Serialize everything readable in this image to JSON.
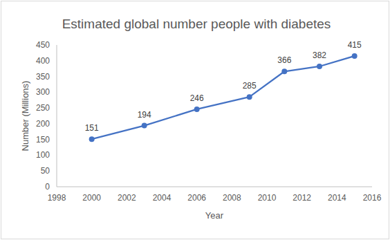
{
  "chart_data": {
    "type": "line",
    "title": "Estimated global number people with diabetes",
    "x_label": "Year",
    "y_label": "Number (Millions)",
    "x": [
      2000,
      2003,
      2006,
      2009,
      2011,
      2013,
      2015
    ],
    "values": [
      151,
      194,
      246,
      285,
      366,
      382,
      415
    ],
    "color": "#4472c4",
    "marker": "circle",
    "line_style": "solid",
    "xlim": [
      1998,
      2016
    ],
    "xticks": [
      1998,
      2000,
      2002,
      2004,
      2006,
      2008,
      2010,
      2012,
      2014,
      2016
    ],
    "ylim": [
      0,
      450
    ],
    "yticks": [
      0,
      50,
      100,
      150,
      200,
      250,
      300,
      350,
      400,
      450
    ],
    "grid": false,
    "data_labels": true
  }
}
